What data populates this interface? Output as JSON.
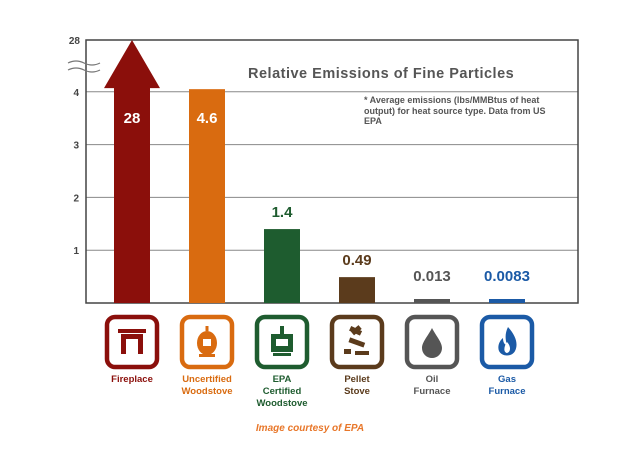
{
  "chart_data": {
    "type": "bar",
    "title": "Relative Emissions of Fine Particles",
    "note": "* Average emissions (lbs/MMBtus of heat output) for heat source type. Data from US EPA",
    "ylabel": "",
    "xlabel": "",
    "ylim": [
      0,
      4
    ],
    "axis_break_top_label": "28",
    "yticks": [
      "1",
      "2",
      "3",
      "4"
    ],
    "grid": true,
    "categories": [
      {
        "name": "Fireplace",
        "lines": [
          "Fireplace"
        ],
        "value": 28,
        "label": "28",
        "color": "#8b0f0b",
        "icon": "fireplace-icon",
        "label_inside": true
      },
      {
        "name": "Uncertified Woodstove",
        "lines": [
          "Uncertified",
          "Woodstove"
        ],
        "value": 4.6,
        "label": "4.6",
        "color": "#d96b10",
        "icon": "woodstove-icon",
        "label_inside": true
      },
      {
        "name": "EPA Certified Woodstove",
        "lines": [
          "EPA",
          "Certified",
          "Woodstove"
        ],
        "value": 1.4,
        "label": "1.4",
        "color": "#1e5c2f",
        "icon": "certified-woodstove-icon",
        "label_inside": false
      },
      {
        "name": "Pellet Stove",
        "lines": [
          "Pellet",
          "Stove"
        ],
        "value": 0.49,
        "label": "0.49",
        "color": "#5b3b1c",
        "icon": "pellets-icon",
        "label_inside": false
      },
      {
        "name": "Oil Furnace",
        "lines": [
          "Oil",
          "Furnace"
        ],
        "value": 0.013,
        "label": "0.013",
        "color": "#555555",
        "icon": "oil-drop-icon",
        "label_inside": false
      },
      {
        "name": "Gas Furnace",
        "lines": [
          "Gas",
          "Furnace"
        ],
        "value": 0.0083,
        "label": "0.0083",
        "color": "#1b5aa6",
        "icon": "gas-flame-icon",
        "label_inside": false
      }
    ]
  },
  "credit": "Image courtesy of EPA"
}
